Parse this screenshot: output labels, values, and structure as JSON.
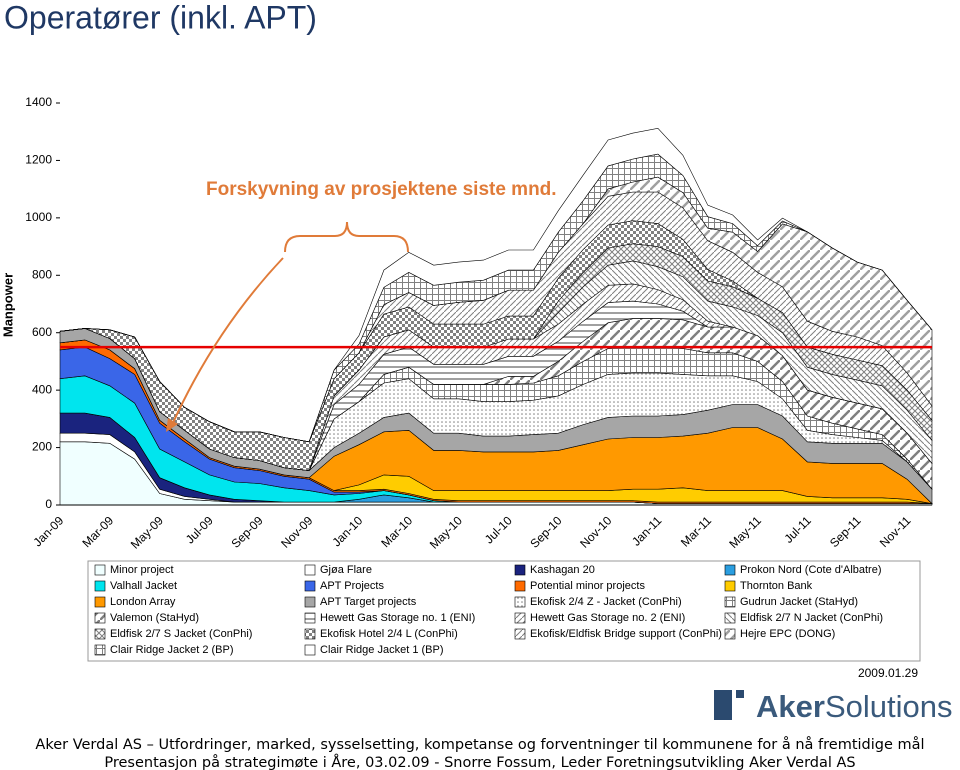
{
  "header": {
    "title": "Operatører (inkl. APT)"
  },
  "chart_data": {
    "type": "stacked_area",
    "y_label": "Manpower",
    "annotation": "Forskyvning av prosjektene siste mnd.",
    "reference_line": {
      "value": 550,
      "color": "#e60000"
    },
    "ylim": [
      0,
      1400
    ],
    "yticks": [
      0,
      200,
      400,
      600,
      800,
      1000,
      1200,
      1400
    ],
    "grid": false,
    "categories": [
      "Jan-09",
      null,
      "Mar-09",
      null,
      "May-09",
      null,
      "Jul-09",
      null,
      "Sep-09",
      null,
      "Nov-09",
      null,
      "Jan-10",
      null,
      "Mar-10",
      null,
      "May-10",
      null,
      "Jul-10",
      null,
      "Sep-10",
      null,
      "Nov-10",
      null,
      "Jan-11",
      null,
      "Mar-11",
      null,
      "May-11",
      null,
      "Jul-11",
      null,
      "Sep-11",
      null,
      "Nov-11",
      null
    ],
    "series": [
      {
        "name": "Minor project",
        "color": "#f0ffff",
        "values": [
          220,
          220,
          215,
          160,
          40,
          20,
          15,
          10,
          10,
          10,
          10,
          10,
          10,
          10,
          10,
          10,
          10,
          10,
          10,
          10,
          10,
          10,
          10,
          10,
          5,
          5,
          5,
          5,
          5,
          5,
          5,
          5,
          5,
          5,
          5,
          5
        ]
      },
      {
        "name": "Gjøa Flare",
        "color": "#ffffff",
        "values": [
          30,
          30,
          30,
          25,
          15,
          10,
          5,
          0,
          0,
          0,
          0,
          0,
          0,
          0,
          0,
          0,
          0,
          0,
          0,
          0,
          0,
          0,
          0,
          0,
          0,
          0,
          0,
          0,
          0,
          0,
          0,
          0,
          0,
          0,
          0,
          0
        ]
      },
      {
        "name": "Kashagan 20",
        "color": "#1a237e",
        "values": [
          70,
          70,
          60,
          50,
          40,
          30,
          15,
          10,
          5,
          0,
          0,
          0,
          0,
          0,
          0,
          0,
          0,
          0,
          0,
          0,
          0,
          0,
          0,
          0,
          0,
          0,
          0,
          0,
          0,
          0,
          0,
          0,
          0,
          0,
          0,
          0
        ]
      },
      {
        "name": "Prokon Nord (Cote d'Albatre)",
        "color": "#2a9ee0",
        "values": [
          0,
          0,
          0,
          0,
          0,
          0,
          0,
          0,
          0,
          0,
          0,
          0,
          10,
          25,
          15,
          0,
          0,
          0,
          0,
          0,
          0,
          0,
          0,
          0,
          0,
          0,
          0,
          0,
          0,
          0,
          0,
          0,
          0,
          0,
          0,
          0
        ]
      },
      {
        "name": "Valhall Jacket",
        "color": "#00e5ee",
        "values": [
          120,
          130,
          110,
          120,
          100,
          90,
          70,
          60,
          60,
          50,
          40,
          25,
          20,
          15,
          10,
          5,
          0,
          0,
          0,
          0,
          0,
          0,
          0,
          0,
          0,
          0,
          0,
          0,
          0,
          0,
          0,
          0,
          0,
          0,
          0,
          0
        ]
      },
      {
        "name": "APT Projects",
        "color": "#3a66e8",
        "values": [
          100,
          100,
          95,
          100,
          90,
          70,
          55,
          50,
          45,
          40,
          40,
          10,
          5,
          0,
          0,
          0,
          0,
          0,
          0,
          0,
          0,
          0,
          0,
          0,
          0,
          0,
          0,
          0,
          0,
          0,
          0,
          0,
          0,
          0,
          0,
          0
        ]
      },
      {
        "name": "Potential minor projects",
        "color": "#ff6a00",
        "values": [
          25,
          25,
          30,
          20,
          10,
          10,
          5,
          5,
          5,
          5,
          5,
          5,
          5,
          5,
          5,
          5,
          5,
          5,
          5,
          5,
          5,
          5,
          5,
          5,
          5,
          5,
          5,
          5,
          5,
          5,
          5,
          5,
          5,
          5,
          5,
          0
        ]
      },
      {
        "name": "Thornton Bank",
        "color": "#ffcc00",
        "values": [
          0,
          0,
          0,
          0,
          0,
          0,
          0,
          0,
          0,
          0,
          0,
          0,
          20,
          50,
          60,
          30,
          35,
          35,
          35,
          35,
          35,
          35,
          35,
          40,
          45,
          50,
          40,
          40,
          40,
          40,
          20,
          15,
          15,
          15,
          10,
          0
        ]
      },
      {
        "name": "London Array",
        "color": "#ff9900",
        "values": [
          0,
          0,
          0,
          0,
          0,
          0,
          0,
          0,
          0,
          0,
          0,
          120,
          140,
          150,
          160,
          140,
          140,
          135,
          135,
          135,
          140,
          160,
          180,
          180,
          180,
          180,
          200,
          220,
          220,
          180,
          120,
          120,
          120,
          120,
          70,
          0
        ]
      },
      {
        "name": "APT Target projects",
        "color": "#a6a6a6",
        "values": [
          40,
          40,
          40,
          35,
          30,
          30,
          30,
          30,
          30,
          25,
          25,
          30,
          40,
          50,
          60,
          60,
          60,
          55,
          55,
          60,
          60,
          70,
          75,
          75,
          75,
          75,
          80,
          80,
          80,
          80,
          70,
          70,
          70,
          70,
          60,
          50
        ]
      },
      {
        "name": "Ekofisk 2/4 Z - Jacket  (ConPhi)",
        "color": "#808080",
        "pattern": "dots",
        "values": [
          0,
          0,
          0,
          0,
          0,
          0,
          0,
          0,
          0,
          0,
          0,
          100,
          110,
          120,
          120,
          120,
          120,
          120,
          120,
          120,
          130,
          140,
          150,
          150,
          150,
          140,
          120,
          100,
          80,
          60,
          40,
          30,
          20,
          10,
          0,
          0
        ]
      },
      {
        "name": "Gudrun Jacket (StaHyd)",
        "color": "#808080",
        "pattern": "grid",
        "values": [
          0,
          0,
          0,
          0,
          0,
          0,
          0,
          0,
          0,
          0,
          0,
          0,
          0,
          30,
          40,
          50,
          50,
          60,
          60,
          60,
          70,
          80,
          90,
          90,
          90,
          90,
          80,
          80,
          70,
          60,
          50,
          40,
          30,
          20,
          10,
          0
        ]
      },
      {
        "name": "Valemon  (StaHyd)",
        "color": "#808080",
        "pattern": "diag-wide",
        "values": [
          0,
          0,
          0,
          0,
          0,
          0,
          0,
          0,
          0,
          0,
          0,
          0,
          0,
          0,
          0,
          0,
          0,
          0,
          28,
          23,
          50,
          70,
          90,
          100,
          100,
          100,
          90,
          90,
          90,
          90,
          90,
          90,
          90,
          90,
          90,
          90
        ]
      },
      {
        "name": "Hewett Gas Storage no. 1 (ENI)",
        "color": "#808080",
        "pattern": "horiz",
        "values": [
          0,
          0,
          0,
          0,
          0,
          0,
          0,
          0,
          0,
          0,
          0,
          50,
          60,
          70,
          70,
          70,
          70,
          70,
          70,
          70,
          70,
          70,
          70,
          60,
          50,
          30,
          0,
          0,
          0,
          0,
          0,
          0,
          0,
          0,
          0,
          0
        ]
      },
      {
        "name": "Hewett Gas Storage no. 2 (ENI)",
        "color": "#808080",
        "pattern": "diag",
        "values": [
          0,
          0,
          0,
          0,
          0,
          0,
          0,
          0,
          0,
          0,
          0,
          30,
          50,
          60,
          60,
          60,
          60,
          60,
          60,
          60,
          60,
          60,
          60,
          60,
          50,
          40,
          20,
          0,
          0,
          0,
          0,
          0,
          0,
          0,
          0,
          0
        ]
      },
      {
        "name": "Eldfisk 2/7 N Jacket  (ConPhi)",
        "color": "#808080",
        "pattern": "diag-rev",
        "values": [
          0,
          0,
          0,
          0,
          0,
          0,
          0,
          0,
          0,
          0,
          0,
          0,
          0,
          0,
          0,
          0,
          0,
          0,
          0,
          0,
          40,
          60,
          70,
          80,
          80,
          80,
          70,
          70,
          70,
          80,
          80,
          80,
          80,
          80,
          80,
          80
        ]
      },
      {
        "name": "Eldfisk 2/7 S Jacket  (ConPhi)",
        "color": "#808080",
        "pattern": "cross",
        "values": [
          0,
          0,
          0,
          0,
          0,
          0,
          0,
          0,
          0,
          0,
          0,
          0,
          0,
          0,
          0,
          0,
          0,
          0,
          0,
          0,
          40,
          50,
          60,
          60,
          70,
          70,
          70,
          70,
          60,
          70,
          70,
          70,
          70,
          70,
          70,
          70
        ]
      },
      {
        "name": "Ekofisk Hotel 2/4 L  (ConPhi)",
        "color": "#808080",
        "pattern": "check",
        "values": [
          0,
          0,
          30,
          75,
          105,
          80,
          95,
          90,
          100,
          105,
          100,
          60,
          60,
          80,
          80,
          80,
          80,
          80,
          80,
          80,
          80,
          80,
          80,
          80,
          80,
          60,
          40,
          20,
          0,
          0,
          0,
          0,
          0,
          0,
          0,
          0
        ]
      },
      {
        "name": "Ekofisk/Eldfisk Bridge support (ConPhi)",
        "color": "#808080",
        "pattern": "diag",
        "values": [
          0,
          0,
          0,
          0,
          0,
          0,
          0,
          0,
          0,
          0,
          0,
          0,
          0,
          33,
          50,
          65,
          76,
          83,
          90,
          90,
          90,
          90,
          100,
          100,
          110,
          110,
          100,
          100,
          90,
          90,
          90,
          80,
          80,
          70,
          60,
          50
        ]
      },
      {
        "name": "Hejre EPC (DONG)",
        "color": "#a0a0a0",
        "pattern": "diag-wide",
        "values": [
          0,
          0,
          0,
          0,
          0,
          0,
          0,
          0,
          0,
          0,
          0,
          0,
          0,
          0,
          0,
          0,
          0,
          0,
          0,
          0,
          0,
          0,
          26,
          35,
          52,
          53,
          44,
          70,
          73,
          219,
          311,
          290,
          261,
          263,
          253,
          265
        ]
      },
      {
        "name": "Clair Ridge Jacket 2 (BP)",
        "color": "#808080",
        "pattern": "grid",
        "values": [
          0,
          0,
          0,
          0,
          0,
          0,
          0,
          0,
          0,
          0,
          0,
          30,
          30,
          60,
          70,
          70,
          70,
          70,
          70,
          70,
          70,
          80,
          80,
          80,
          80,
          60,
          40,
          30,
          20,
          10,
          0,
          0,
          0,
          0,
          0,
          0
        ]
      },
      {
        "name": "Clair Ridge Jacket 1 (BP)",
        "color": "#ffffff",
        "values": [
          0,
          0,
          0,
          0,
          0,
          0,
          0,
          0,
          0,
          0,
          0,
          0,
          30,
          60,
          70,
          70,
          70,
          70,
          70,
          70,
          75,
          89,
          90,
          90,
          90,
          70,
          40,
          30,
          20,
          10,
          0,
          0,
          0,
          0,
          0,
          0
        ]
      }
    ]
  },
  "date": "2009.01.29",
  "logo": {
    "brand": "Aker",
    "suffix": "Solutions"
  },
  "footer": {
    "line1": "Aker Verdal AS – Utfordringer, marked, sysselsetting, kompetanse og forventninger til kommunene for å nå fremtidige mål",
    "line2": "Presentasjon på strategimøte i Åre, 03.02.09 - Snorre Fossum, Leder Foretningsutvikling Aker Verdal AS"
  }
}
